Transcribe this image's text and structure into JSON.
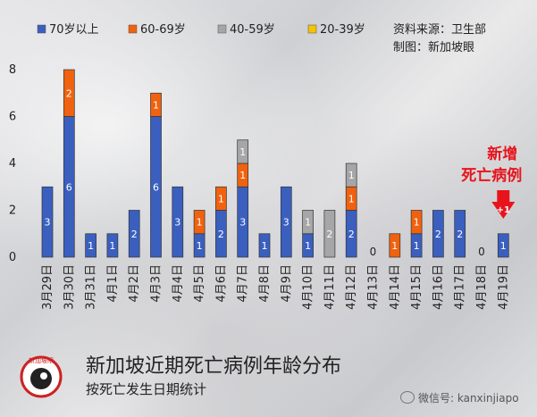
{
  "chart_data": {
    "type": "bar",
    "stacked": true,
    "categories": [
      "3月29日",
      "3月30日",
      "3月31日",
      "4月1日",
      "4月2日",
      "4月3日",
      "4月4日",
      "4月5日",
      "4月6日",
      "4月7日",
      "4月8日",
      "4月9日",
      "4月10日",
      "4月11日",
      "4月12日",
      "4月13日",
      "4月14日",
      "4月15日",
      "4月16日",
      "4月17日",
      "4月18日",
      "4月19日"
    ],
    "series": [
      {
        "name": "70岁以上",
        "color": "#3a5fbf",
        "values": [
          3,
          6,
          1,
          1,
          2,
          6,
          3,
          1,
          2,
          3,
          1,
          3,
          1,
          0,
          2,
          0,
          0,
          1,
          2,
          2,
          0,
          1
        ]
      },
      {
        "name": "60-69岁",
        "color": "#f0620f",
        "values": [
          0,
          2,
          0,
          0,
          0,
          1,
          0,
          1,
          1,
          1,
          0,
          0,
          0,
          0,
          1,
          0,
          1,
          1,
          0,
          0,
          0,
          0
        ]
      },
      {
        "name": "40-59岁",
        "color": "#a6a6a6",
        "values": [
          0,
          0,
          0,
          0,
          0,
          0,
          0,
          0,
          0,
          1,
          0,
          0,
          1,
          2,
          1,
          0,
          0,
          0,
          0,
          0,
          0,
          0
        ]
      },
      {
        "name": "20-39岁",
        "color": "#f5c400",
        "values": [
          0,
          0,
          0,
          0,
          0,
          0,
          0,
          0,
          0,
          0,
          0,
          0,
          0,
          0,
          0,
          0,
          0,
          0,
          0,
          0,
          0,
          0
        ]
      }
    ],
    "zero_labels": [
      "0",
      "0"
    ],
    "ylim": [
      0,
      8
    ],
    "yticks": [
      "0",
      "2",
      "4",
      "6",
      "8"
    ],
    "legend_position": "top-left",
    "source_line": "资料来源：卫生部",
    "maker_line": "制图：新加坡眼",
    "annotation": {
      "line1": "新增",
      "line2": "死亡病例",
      "badge": "+1",
      "color": "#e8141c"
    }
  },
  "footer": {
    "title": "新加坡近期死亡病例年龄分布",
    "subtitle": "按死亡发生日期统计",
    "logo_text": "新加坡眼",
    "wechat": "微信号: kanxinjiapo"
  }
}
